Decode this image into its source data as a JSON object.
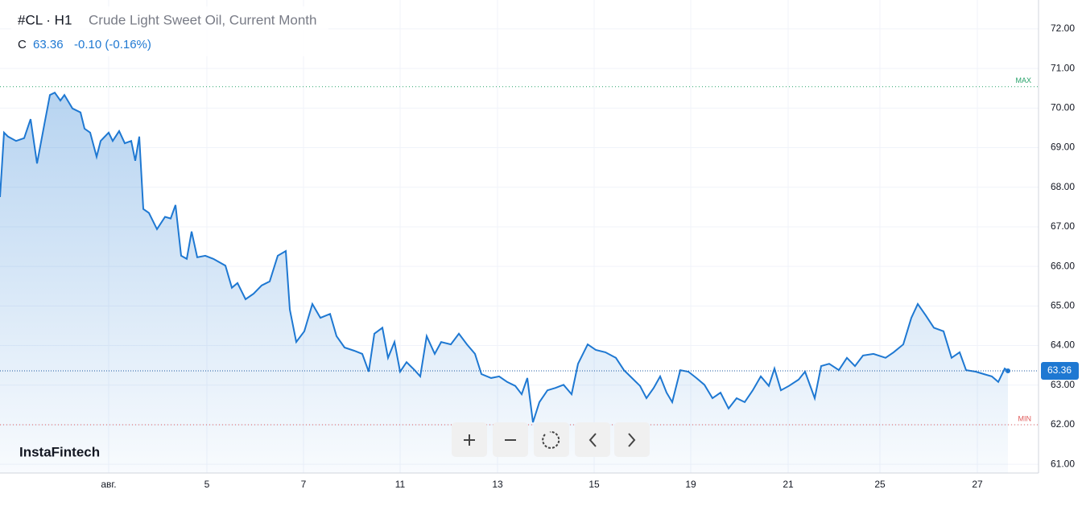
{
  "chart_data": {
    "type": "area",
    "symbol": "#CL · H1",
    "title": "Crude Light Sweet Oil, Current Month",
    "close_prefix": "C",
    "close": 63.36,
    "change": "-0.10 (-0.16%)",
    "brand": "InstaFintech",
    "color": "#1e78d2",
    "x": [
      0,
      0.5,
      1,
      2,
      3,
      3.8,
      4.6,
      5.5,
      6.2,
      6.8,
      7.5,
      8,
      9,
      10,
      10.5,
      11.2,
      12,
      12.5,
      13.5,
      14,
      14.8,
      15.5,
      16.3,
      16.8,
      17.3,
      17.8,
      18.5,
      19.5,
      20.5,
      21.2,
      21.8,
      22.5,
      23.2,
      23.8,
      24.5,
      25.5,
      26.5,
      28,
      28.8,
      29.5,
      30.5,
      31.5,
      32.5,
      33.5,
      34.5,
      35.5,
      36,
      36.8,
      37.8,
      38.8,
      39.8,
      41,
      41.8,
      42.8,
      44,
      45,
      45.8,
      46.5,
      47.5,
      48.2,
      49,
      49.7,
      50.5,
      51.5,
      52.2,
      53,
      54,
      54.8,
      56,
      57,
      58,
      59,
      59.8,
      61,
      62,
      63,
      64,
      64.8,
      65.5,
      66.2,
      67,
      68,
      69,
      70,
      71,
      71.8,
      73,
      74,
      75.2,
      76.5,
      77.5,
      78.5,
      79.5,
      80.3,
      81.2,
      82,
      82.8,
      83.5,
      84.5,
      85.5,
      86.5,
      87.5,
      88.5,
      89.5,
      90.5,
      91.5,
      92.5,
      93.5,
      94.5,
      95.5,
      96.2,
      97,
      98,
      99.2,
      100,
      101.2,
      102,
      103,
      104.2,
      105.2,
      106.2,
      107.2,
      108.5,
      110,
      111,
      112.2,
      113.2,
      114,
      115,
      116,
      117.2,
      118.2,
      119.2,
      120,
      121.2,
      122.2,
      123.2,
      124,
      124.8,
      125.2
    ],
    "values": [
      67.75,
      69.38,
      69.28,
      69.17,
      69.24,
      69.72,
      68.6,
      69.58,
      70.33,
      70.39,
      70.19,
      70.33,
      69.99,
      69.89,
      69.48,
      69.38,
      68.77,
      69.17,
      69.38,
      69.17,
      69.42,
      69.11,
      69.17,
      68.67,
      69.28,
      67.45,
      67.35,
      66.94,
      67.25,
      67.21,
      67.55,
      66.27,
      66.19,
      66.88,
      66.23,
      66.27,
      66.19,
      66.02,
      65.46,
      65.58,
      65.17,
      65.31,
      65.52,
      65.62,
      66.27,
      66.39,
      64.91,
      64.09,
      64.36,
      65.05,
      64.7,
      64.8,
      64.24,
      63.95,
      63.87,
      63.79,
      63.34,
      64.3,
      64.45,
      63.69,
      64.09,
      63.34,
      63.58,
      63.38,
      63.22,
      64.24,
      63.79,
      64.09,
      64.03,
      64.3,
      64.03,
      63.79,
      63.28,
      63.18,
      63.22,
      63.08,
      62.98,
      62.77,
      63.18,
      62.06,
      62.57,
      62.87,
      62.93,
      63.01,
      62.77,
      63.54,
      64.03,
      63.89,
      63.83,
      63.69,
      63.38,
      63.18,
      62.98,
      62.67,
      62.93,
      63.22,
      62.81,
      62.57,
      63.38,
      63.34,
      63.18,
      63.01,
      62.67,
      62.81,
      62.41,
      62.67,
      62.57,
      62.87,
      63.22,
      62.98,
      63.42,
      62.87,
      62.98,
      63.14,
      63.34,
      62.67,
      63.48,
      63.54,
      63.38,
      63.69,
      63.48,
      63.75,
      63.79,
      63.69,
      63.83,
      64.03,
      64.7,
      65.05,
      64.76,
      64.45,
      64.36,
      63.69,
      63.83,
      63.38,
      63.34,
      63.28,
      63.22,
      63.08,
      63.42,
      63.36
    ],
    "last": {
      "value": 63.36,
      "label": "63.36"
    },
    "max": {
      "value": 70.54,
      "label": "MAX"
    },
    "min": {
      "value": 62.0,
      "label": "MIN"
    },
    "xlim": [
      0,
      129
    ],
    "ylim": [
      60.78,
      72.73
    ],
    "xticks": [
      {
        "value": 13.5,
        "label": "авг."
      },
      {
        "value": 25.7,
        "label": "5"
      },
      {
        "value": 37.7,
        "label": "7"
      },
      {
        "value": 49.7,
        "label": "11"
      },
      {
        "value": 61.8,
        "label": "13"
      },
      {
        "value": 73.8,
        "label": "15"
      },
      {
        "value": 85.8,
        "label": "19"
      },
      {
        "value": 97.9,
        "label": "21"
      },
      {
        "value": 109.3,
        "label": "25"
      },
      {
        "value": 121.4,
        "label": "27"
      }
    ],
    "yticks": [
      {
        "value": 61,
        "label": "61.00"
      },
      {
        "value": 62,
        "label": "62.00"
      },
      {
        "value": 63,
        "label": "63.00"
      },
      {
        "value": 64,
        "label": "64.00"
      },
      {
        "value": 65,
        "label": "65.00"
      },
      {
        "value": 66,
        "label": "66.00"
      },
      {
        "value": 67,
        "label": "67.00"
      },
      {
        "value": 68,
        "label": "68.00"
      },
      {
        "value": 69,
        "label": "69.00"
      },
      {
        "value": 70,
        "label": "70.00"
      },
      {
        "value": 71,
        "label": "71.00"
      },
      {
        "value": 72,
        "label": "72.00"
      }
    ],
    "grid": true
  }
}
